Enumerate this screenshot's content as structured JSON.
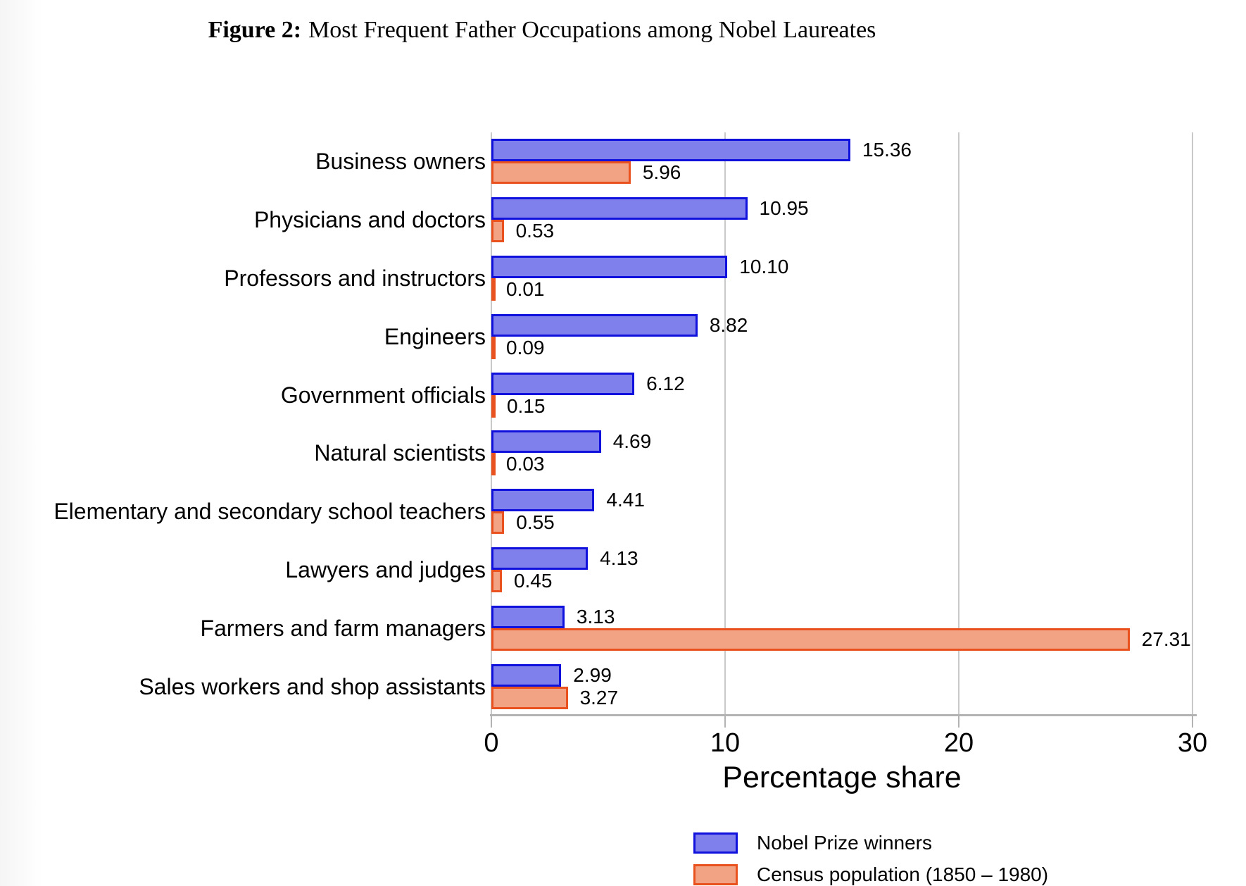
{
  "figure": {
    "title_prefix": "Figure 2:",
    "title_text": "Most Frequent Father Occupations among Nobel Laureates"
  },
  "chart_data": {
    "type": "bar",
    "orientation": "horizontal",
    "title": "Figure 2: Most Frequent Father Occupations among Nobel Laureates",
    "xlabel": "Percentage share",
    "xlim": [
      0,
      30
    ],
    "xtick_labels": [
      "0",
      "10",
      "20",
      "30"
    ],
    "xtick_values": [
      0,
      10,
      20,
      30
    ],
    "grid": "vertical",
    "legend_position": "bottom",
    "value_labels": true,
    "categories": [
      "Business owners",
      "Physicians and doctors",
      "Professors and instructors",
      "Engineers",
      "Government officials",
      "Natural scientists",
      "Elementary and secondary school teachers",
      "Lawyers and judges",
      "Farmers and farm managers",
      "Sales workers and shop assistants"
    ],
    "series": [
      {
        "name": "Nobel Prize winners",
        "fill_color": "#8080ED",
        "border_color": "#1111DE",
        "values": [
          15.36,
          10.95,
          10.1,
          8.82,
          6.12,
          4.69,
          4.41,
          4.13,
          3.13,
          2.99
        ]
      },
      {
        "name": "Census population (1850 – 1980)",
        "fill_color": "#F2A384",
        "border_color": "#E9511F",
        "values": [
          5.96,
          0.53,
          0.01,
          0.09,
          0.15,
          0.03,
          0.55,
          0.45,
          27.31,
          3.27
        ]
      }
    ]
  }
}
